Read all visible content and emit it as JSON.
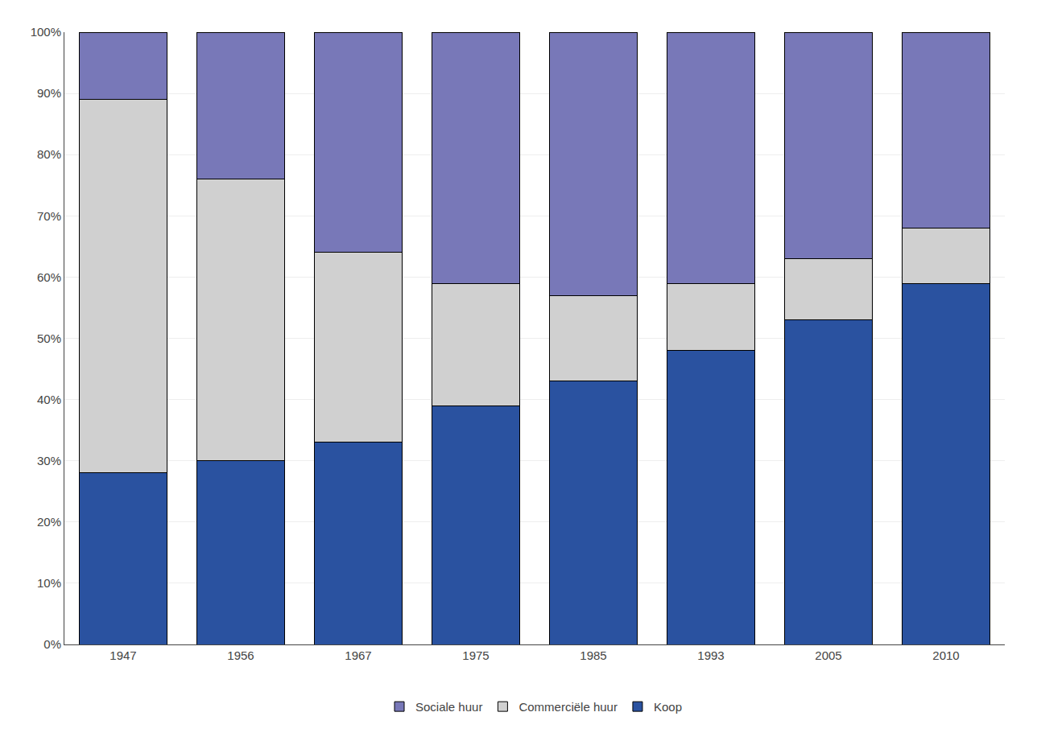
{
  "chart_data": {
    "type": "bar",
    "stacked": true,
    "categories": [
      "1947",
      "1956",
      "1967",
      "1975",
      "1985",
      "1993",
      "2005",
      "2010"
    ],
    "series": [
      {
        "name": "Koop",
        "color": "#2a52a0",
        "values": [
          28,
          30,
          33,
          39,
          43,
          48,
          53,
          59
        ]
      },
      {
        "name": "Commerciële huur",
        "color": "#d0d0d0",
        "values": [
          61,
          46,
          31,
          20,
          14,
          11,
          10,
          9
        ]
      },
      {
        "name": "Sociale huur",
        "color": "#7878b8",
        "values": [
          11,
          24,
          36,
          41,
          43,
          41,
          37,
          32
        ]
      }
    ],
    "ylim": [
      0,
      100
    ],
    "yticks": [
      {
        "value": 0,
        "label": "0%"
      },
      {
        "value": 10,
        "label": "10%"
      },
      {
        "value": 20,
        "label": "20%"
      },
      {
        "value": 30,
        "label": "30%"
      },
      {
        "value": 40,
        "label": "40%"
      },
      {
        "value": 50,
        "label": "50%"
      },
      {
        "value": 60,
        "label": "60%"
      },
      {
        "value": 70,
        "label": "70%"
      },
      {
        "value": 80,
        "label": "80%"
      },
      {
        "value": 90,
        "label": "90%"
      },
      {
        "value": 100,
        "label": "100%"
      }
    ],
    "grid": true,
    "legend": "bottom"
  }
}
